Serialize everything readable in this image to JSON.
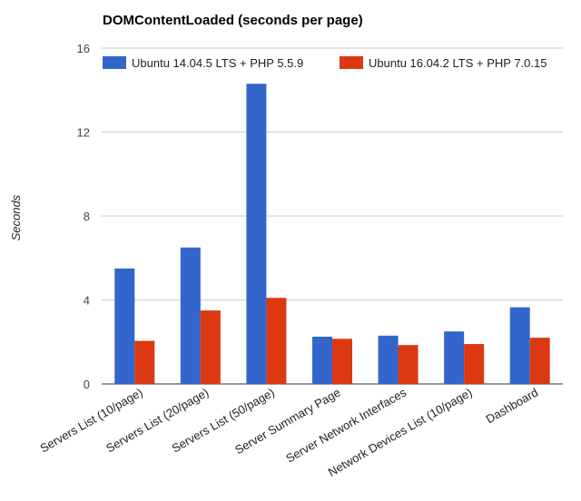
{
  "chart_data": {
    "type": "bar",
    "title": "DOMContentLoaded (seconds per page)",
    "xlabel": "",
    "ylabel": "Seconds",
    "ylim": [
      0,
      16
    ],
    "yticks": [
      0,
      4,
      8,
      12,
      16
    ],
    "grid": true,
    "legend_position": "top",
    "categories": [
      "Servers List (10/page)",
      "Servers List (20/page)",
      "Servers List (50/page)",
      "Server Summary Page",
      "Server Network Interfaces",
      "Network Devices List (10/page)",
      "Dashboard"
    ],
    "series": [
      {
        "name": "Ubuntu 14.04.5 LTS + PHP 5.5.9",
        "color": "#3366cc",
        "values": [
          5.5,
          6.5,
          14.3,
          2.25,
          2.3,
          2.5,
          3.65
        ]
      },
      {
        "name": "Ubuntu 16.04.2 LTS + PHP 7.0.15",
        "color": "#dc3912",
        "values": [
          2.05,
          3.5,
          4.1,
          2.15,
          1.85,
          1.9,
          2.2
        ]
      }
    ]
  }
}
